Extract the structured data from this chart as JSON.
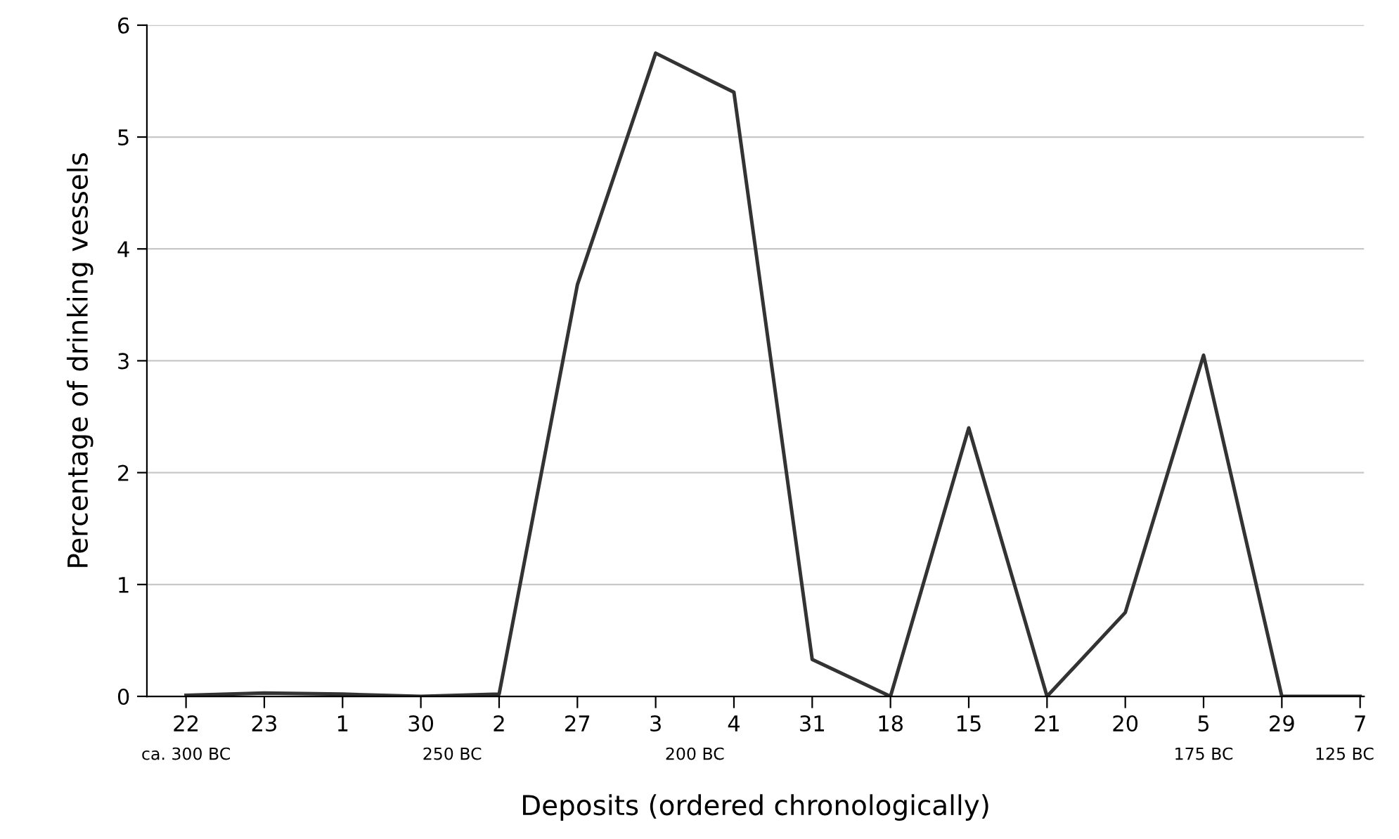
{
  "chart_data": {
    "type": "line",
    "xlabel": "Deposits (ordered chronologically)",
    "ylabel": "Percentage of drinking vessels",
    "categories": [
      "22",
      "23",
      "1",
      "30",
      "2",
      "27",
      "3",
      "4",
      "31",
      "18",
      "15",
      "21",
      "20",
      "5",
      "29",
      "7"
    ],
    "series": [
      {
        "color": "#333333",
        "values": [
          0.01,
          0.03,
          0.02,
          0,
          0.02,
          3.68,
          5.75,
          5.4,
          0.33,
          0,
          2.4,
          0,
          0.75,
          3.05,
          0,
          0
        ]
      }
    ],
    "ylim": [
      0,
      6
    ],
    "yticks": [
      0,
      1,
      2,
      3,
      4,
      5,
      6
    ],
    "grid": "y",
    "marker": "none",
    "line_style": "solid",
    "annotations": [
      "ca. 300 BC",
      "250 BC",
      "200 BC",
      "175 BC",
      "125 BC"
    ]
  }
}
